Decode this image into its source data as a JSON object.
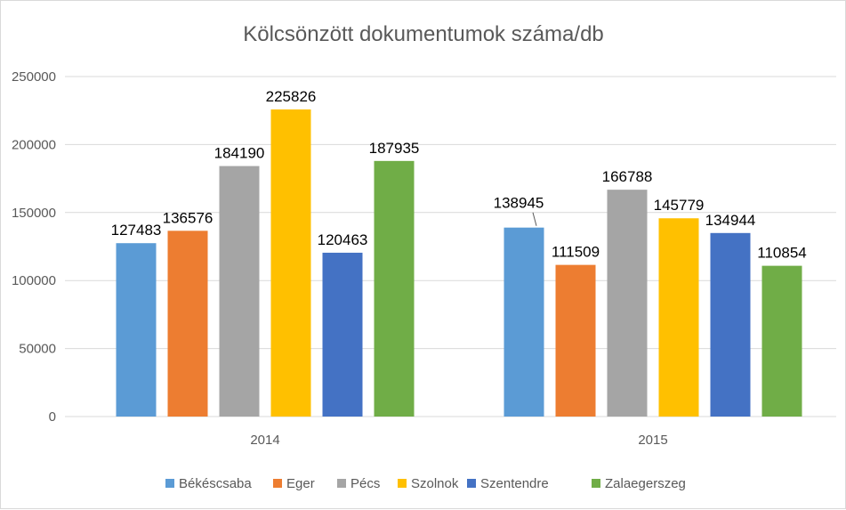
{
  "chart_data": {
    "type": "bar",
    "title": "Kölcsönzött dokumentumok száma/db",
    "categories": [
      "2014",
      "2015"
    ],
    "series": [
      {
        "name": "Békéscsaba",
        "color": "#5b9bd5",
        "values": [
          127483,
          138945
        ]
      },
      {
        "name": "Eger",
        "color": "#ed7d31",
        "values": [
          136576,
          111509
        ]
      },
      {
        "name": "Pécs",
        "color": "#a5a5a5",
        "values": [
          184190,
          166788
        ]
      },
      {
        "name": "Szolnok",
        "color": "#ffc000",
        "values": [
          225826,
          145779
        ]
      },
      {
        "name": "Szentendre",
        "color": "#4472c4",
        "values": [
          120463,
          134944
        ]
      },
      {
        "name": "Zalaegerszeg",
        "color": "#70ad47",
        "values": [
          187935,
          110854
        ]
      }
    ],
    "ylim": [
      0,
      250000
    ],
    "yticks": [
      "0",
      "50000",
      "100000",
      "150000",
      "200000",
      "250000"
    ],
    "xlabel": "",
    "ylabel": "",
    "grid": true,
    "legend": "bottom"
  }
}
